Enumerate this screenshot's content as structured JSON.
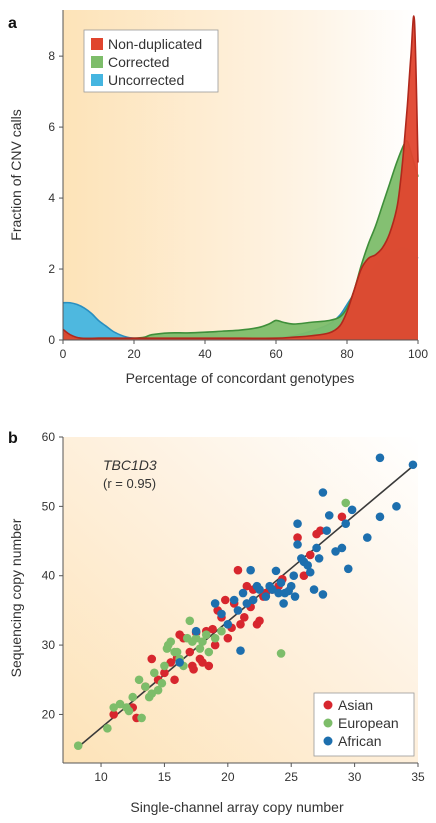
{
  "chart_data": [
    {
      "panel": "a",
      "type": "area",
      "xlabel": "Percentage of concordant genotypes",
      "ylabel": "Fraction of CNV calls",
      "xlim": [
        0,
        100
      ],
      "ylim": [
        0,
        9.3
      ],
      "xticks": [
        0,
        20,
        40,
        60,
        80,
        100
      ],
      "yticks": [
        0,
        2,
        4,
        6,
        8
      ],
      "grid": false,
      "legend_position": "top-left",
      "series": [
        {
          "name": "Uncorrected",
          "color": "#45b5e0",
          "x": [
            0,
            2,
            4,
            6,
            8,
            10,
            12,
            14,
            16,
            18,
            20,
            22,
            25,
            30,
            40,
            50,
            60,
            65,
            70,
            75,
            78,
            80,
            83,
            86,
            88,
            90,
            92,
            94,
            96,
            98,
            100
          ],
          "values": [
            1.05,
            1.05,
            1.0,
            0.9,
            0.75,
            0.55,
            0.4,
            0.25,
            0.15,
            0.08,
            0.05,
            0.03,
            0.03,
            0.02,
            0.02,
            0.03,
            0.06,
            0.12,
            0.25,
            0.45,
            0.7,
            1.0,
            1.45,
            1.85,
            2.1,
            2.3,
            2.45,
            2.55,
            2.6,
            2.5,
            2.3
          ]
        },
        {
          "name": "Corrected",
          "color": "#7dbd6a",
          "x": [
            0,
            2,
            5,
            10,
            15,
            20,
            23,
            25,
            30,
            35,
            40,
            45,
            50,
            55,
            58,
            60,
            62,
            65,
            70,
            75,
            78,
            80,
            82,
            84,
            86,
            88,
            90,
            92,
            94,
            96,
            97,
            98,
            100
          ],
          "values": [
            0.2,
            0.1,
            0.05,
            0.05,
            0.05,
            0.05,
            0.08,
            0.15,
            0.2,
            0.2,
            0.22,
            0.25,
            0.28,
            0.35,
            0.45,
            0.55,
            0.5,
            0.45,
            0.5,
            0.55,
            0.65,
            0.9,
            1.4,
            2.1,
            2.7,
            3.2,
            3.8,
            4.4,
            5.0,
            5.5,
            5.6,
            5.3,
            4.6
          ]
        },
        {
          "name": "Non-duplicated",
          "color": "#e0452e",
          "x": [
            0,
            2,
            5,
            10,
            20,
            30,
            40,
            50,
            60,
            65,
            70,
            75,
            78,
            80,
            82,
            84,
            86,
            88,
            90,
            92,
            94,
            95,
            96,
            97,
            98,
            99,
            100
          ],
          "values": [
            0.3,
            0.15,
            0.05,
            0.05,
            0.05,
            0.05,
            0.05,
            0.05,
            0.05,
            0.08,
            0.12,
            0.2,
            0.4,
            0.8,
            1.4,
            2.0,
            2.3,
            2.4,
            2.6,
            3.0,
            3.7,
            4.4,
            5.4,
            6.6,
            8.0,
            9.0,
            5.0
          ]
        }
      ]
    },
    {
      "panel": "b",
      "type": "scatter",
      "xlabel": "Single-channel array copy number",
      "ylabel": "Sequencing copy number",
      "xlim": [
        7,
        35
      ],
      "ylim": [
        13,
        60
      ],
      "xticks": [
        10,
        15,
        20,
        25,
        30,
        35
      ],
      "yticks": [
        20,
        30,
        40,
        50,
        60
      ],
      "grid": false,
      "legend_position": "bottom-right",
      "annotation_gene": "TBC1D3",
      "annotation_r": "(r = 0.95)",
      "regression_line": {
        "x": [
          8.2,
          34.6
        ],
        "y": [
          15.3,
          55.8
        ]
      },
      "series": [
        {
          "name": "Asian",
          "color": "#d7262e",
          "points": [
            [
              11,
              20
            ],
            [
              12.5,
              21
            ],
            [
              12.8,
              19.5
            ],
            [
              13.5,
              24
            ],
            [
              14,
              28
            ],
            [
              14.5,
              25
            ],
            [
              15,
              26
            ],
            [
              15.5,
              27.5
            ],
            [
              15.8,
              25
            ],
            [
              16,
              28.2
            ],
            [
              16.2,
              31.5
            ],
            [
              16.5,
              31
            ],
            [
              17,
              29
            ],
            [
              17.2,
              27
            ],
            [
              17.3,
              26.5
            ],
            [
              17.5,
              31.8
            ],
            [
              17.8,
              28
            ],
            [
              18,
              27.5
            ],
            [
              18.3,
              32
            ],
            [
              18.5,
              27
            ],
            [
              18.8,
              32.3
            ],
            [
              19,
              30
            ],
            [
              19.2,
              35
            ],
            [
              19.5,
              34
            ],
            [
              19.8,
              36.5
            ],
            [
              20,
              31
            ],
            [
              20.3,
              32.5
            ],
            [
              20.5,
              36
            ],
            [
              20.8,
              40.8
            ],
            [
              21,
              33
            ],
            [
              21.3,
              34
            ],
            [
              21.5,
              38.5
            ],
            [
              21.8,
              35.5
            ],
            [
              22,
              38
            ],
            [
              22.3,
              33
            ],
            [
              22.5,
              33.5
            ],
            [
              22.8,
              37
            ],
            [
              23,
              37.5
            ],
            [
              23.5,
              38
            ],
            [
              24,
              38.5
            ],
            [
              24.3,
              39.5
            ],
            [
              25.5,
              45.5
            ],
            [
              26,
              40
            ],
            [
              26.5,
              43
            ],
            [
              27,
              46
            ],
            [
              27.3,
              46.5
            ],
            [
              29,
              48.5
            ]
          ]
        },
        {
          "name": "European",
          "color": "#7dbd6a",
          "points": [
            [
              8.2,
              15.5
            ],
            [
              10.5,
              18
            ],
            [
              11,
              21
            ],
            [
              11.5,
              21.5
            ],
            [
              12,
              21
            ],
            [
              12.2,
              20.5
            ],
            [
              12.5,
              22.5
            ],
            [
              13,
              25
            ],
            [
              13.2,
              19.5
            ],
            [
              13.5,
              24
            ],
            [
              13.8,
              22.5
            ],
            [
              14,
              23
            ],
            [
              14.2,
              26
            ],
            [
              14.5,
              23.5
            ],
            [
              14.8,
              24.5
            ],
            [
              15,
              27
            ],
            [
              15.2,
              29.5
            ],
            [
              15.3,
              30
            ],
            [
              15.5,
              30.5
            ],
            [
              15.8,
              29
            ],
            [
              16,
              29
            ],
            [
              16.2,
              28
            ],
            [
              16.5,
              27
            ],
            [
              16.8,
              31
            ],
            [
              17,
              33.5
            ],
            [
              17.2,
              30.5
            ],
            [
              17.5,
              31
            ],
            [
              17.8,
              29.5
            ],
            [
              18,
              30.5
            ],
            [
              18.3,
              31.5
            ],
            [
              18.5,
              29
            ],
            [
              19,
              31
            ],
            [
              19.5,
              32
            ],
            [
              24.2,
              28.8
            ],
            [
              29.3,
              50.5
            ]
          ]
        },
        {
          "name": "African",
          "color": "#1d6fae",
          "points": [
            [
              16.2,
              27.5
            ],
            [
              17.5,
              32
            ],
            [
              19,
              36
            ],
            [
              19.5,
              34.5
            ],
            [
              20,
              33
            ],
            [
              20.5,
              36.5
            ],
            [
              20.8,
              35
            ],
            [
              21,
              29.2
            ],
            [
              21.2,
              37.5
            ],
            [
              21.5,
              36
            ],
            [
              21.8,
              40.8
            ],
            [
              22,
              36.5
            ],
            [
              22.3,
              38.5
            ],
            [
              22.5,
              38
            ],
            [
              23,
              37
            ],
            [
              23.3,
              38.5
            ],
            [
              23.5,
              38
            ],
            [
              23.8,
              40.7
            ],
            [
              24,
              37.5
            ],
            [
              24.2,
              39
            ],
            [
              24.4,
              36
            ],
            [
              24.5,
              37.5
            ],
            [
              24.8,
              37.8
            ],
            [
              25,
              38.5
            ],
            [
              25.2,
              40
            ],
            [
              25.3,
              37
            ],
            [
              25.5,
              47.5
            ],
            [
              25.5,
              44.5
            ],
            [
              25.8,
              42.5
            ],
            [
              26,
              42
            ],
            [
              26.3,
              41.5
            ],
            [
              26.5,
              40.5
            ],
            [
              26.8,
              38
            ],
            [
              27,
              44
            ],
            [
              27.2,
              42.5
            ],
            [
              27.5,
              52
            ],
            [
              27.5,
              37.3
            ],
            [
              27.8,
              46.5
            ],
            [
              28,
              48.7
            ],
            [
              28.5,
              43.5
            ],
            [
              29,
              44
            ],
            [
              29.3,
              47.5
            ],
            [
              29.5,
              41
            ],
            [
              29.8,
              49.5
            ],
            [
              31,
              45.5
            ],
            [
              32,
              57
            ],
            [
              32,
              48.5
            ],
            [
              33.3,
              50
            ],
            [
              34.6,
              56
            ]
          ]
        }
      ]
    }
  ]
}
